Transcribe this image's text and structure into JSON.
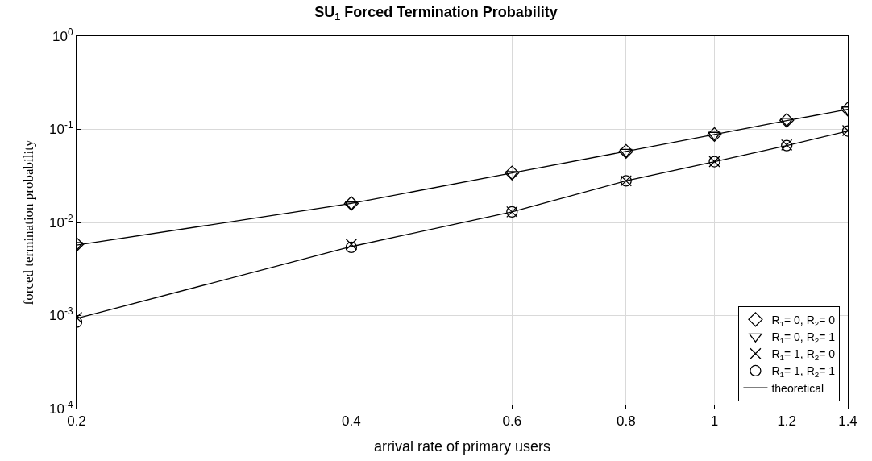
{
  "chart_data": {
    "type": "line",
    "title": "SU$_{1}$ Forced Termination Probability",
    "xlabel": "arrival rate of primary users",
    "ylabel": "forced termination probability",
    "x": [
      0.2,
      0.4,
      0.6,
      0.8,
      1,
      1.2,
      1.4
    ],
    "series": [
      {
        "name": "R$_{1}$= 0, R$_{2}$= 0",
        "type": "scatter",
        "marker": "diamond",
        "color": "#000000",
        "values": [
          0.0058,
          0.016,
          0.034,
          0.058,
          0.088,
          0.125,
          0.165
        ]
      },
      {
        "name": "R$_{1}$= 0, R$_{2}$= 1",
        "type": "scatter",
        "marker": "triangle",
        "color": "#000000",
        "values": [
          0.0057,
          0.0155,
          0.033,
          0.057,
          0.087,
          0.123,
          0.163
        ]
      },
      {
        "name": "R$_{1}$= 1, R$_{2}$= 0",
        "type": "scatter",
        "marker": "cross",
        "color": "#000000",
        "values": [
          0.00095,
          0.0058,
          0.013,
          0.028,
          0.045,
          0.068,
          0.097
        ]
      },
      {
        "name": "R$_{1}$= 1, R$_{2}$= 1",
        "type": "scatter",
        "marker": "circle",
        "color": "#000000",
        "values": [
          0.00085,
          0.0054,
          0.013,
          0.028,
          0.045,
          0.067,
          0.096
        ]
      },
      {
        "name": "theoretical",
        "marker": "none",
        "line_style": "solid",
        "color": "#000000",
        "values": [
          0.0057,
          0.016,
          0.034,
          0.058,
          0.088,
          0.124,
          0.164
        ]
      },
      {
        "marker": "none",
        "line_style": "solid",
        "color": "#000000",
        "values": [
          0.00093,
          0.0055,
          0.013,
          0.028,
          0.045,
          0.067,
          0.096
        ]
      }
    ],
    "log": "xy",
    "xlim": [
      0.2,
      1.4
    ],
    "xticks": [
      0.2,
      0.4,
      0.6,
      0.8,
      1,
      1.2,
      1.4
    ],
    "ylim": [
      0.0001,
      1
    ],
    "yticks": [
      {
        "value": 0.0001,
        "label": "10$^{-4}$"
      },
      {
        "value": 0.001,
        "label": "10$^{-3}$"
      },
      {
        "value": 0.01,
        "label": "10$^{-2}$"
      },
      {
        "value": 0.1,
        "label": "10$^{-1}$"
      },
      {
        "value": 1,
        "label": "10$^{0}$"
      }
    ],
    "grid": true,
    "legend": "bottom right"
  }
}
